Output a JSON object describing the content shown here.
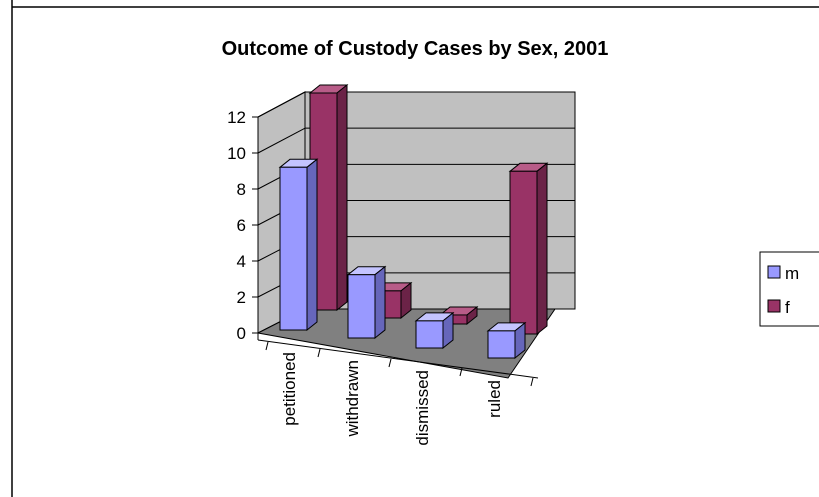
{
  "chart_data": {
    "type": "bar",
    "title": "Outcome of Custody Cases by Sex, 2001",
    "categories": [
      "petitioned",
      "withdrawn",
      "dismissed",
      "ruled"
    ],
    "series": [
      {
        "name": "m",
        "values": [
          9,
          3.5,
          1.5,
          1.5
        ]
      },
      {
        "name": "f",
        "values": [
          12,
          1.5,
          0.5,
          9
        ]
      }
    ],
    "ylim": [
      0,
      12
    ],
    "yticks": [
      "0",
      "2",
      "4",
      "6",
      "8",
      "10",
      "12"
    ],
    "grid": true,
    "legend_position": "right",
    "three_d": true
  },
  "colors": {
    "m_front": "#9999ff",
    "m_side": "#6666bb",
    "m_top": "#c4c4ff",
    "f_front": "#993366",
    "f_side": "#6b2347",
    "f_top": "#b85c88",
    "wall": "#c0c0c0",
    "floor": "#808080"
  }
}
